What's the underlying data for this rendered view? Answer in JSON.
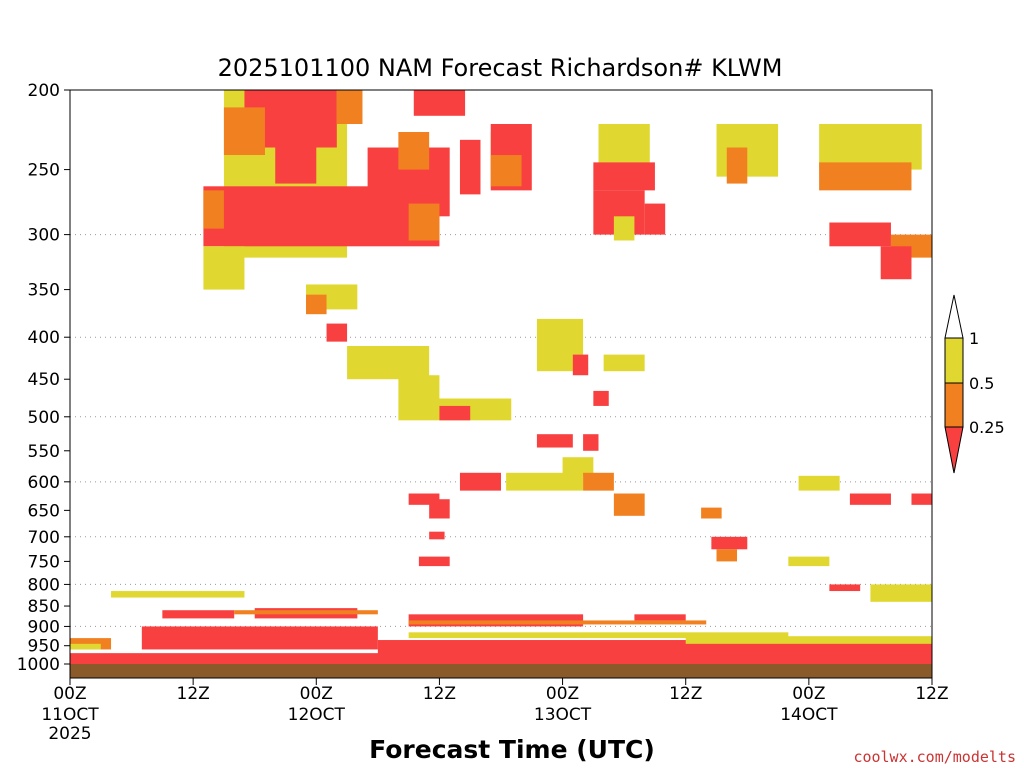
{
  "chart_data": {
    "type": "heatmap",
    "title": "2025101100 NAM Forecast Richardson# KLWM",
    "xlabel": "Forecast Time (UTC)",
    "ylabel": "",
    "y_axis_scale": "log-pressure (hPa), inverted",
    "ylim": [
      1000,
      200
    ],
    "xlim_hours": [
      0,
      84
    ],
    "grid": "dotted horizontal lines at 300, 400, 500, 600, 700, 800, 900 hPa",
    "y_ticks": [
      200,
      250,
      300,
      350,
      400,
      450,
      500,
      550,
      600,
      650,
      700,
      750,
      800,
      850,
      900,
      950,
      1000
    ],
    "y_tick_labels": [
      "200",
      "250",
      "300",
      "350",
      "400",
      "450",
      "500",
      "550",
      "600",
      "650",
      "700",
      "750",
      "800",
      "850",
      "900",
      "950",
      "1000"
    ],
    "x_ticks": [
      {
        "hour": 0,
        "label": "00Z",
        "day": "11OCT",
        "year": "2025"
      },
      {
        "hour": 12,
        "label": "12Z",
        "day": "",
        "year": ""
      },
      {
        "hour": 24,
        "label": "00Z",
        "day": "12OCT",
        "year": ""
      },
      {
        "hour": 36,
        "label": "12Z",
        "day": "",
        "year": ""
      },
      {
        "hour": 48,
        "label": "00Z",
        "day": "13OCT",
        "year": ""
      },
      {
        "hour": 60,
        "label": "12Z",
        "day": "",
        "year": ""
      },
      {
        "hour": 72,
        "label": "00Z",
        "day": "14OCT",
        "year": ""
      },
      {
        "hour": 84,
        "label": "12Z",
        "day": "",
        "year": ""
      }
    ],
    "colorbar": {
      "placement": "right",
      "levels": [
        {
          "label": "1",
          "value": 1
        },
        {
          "label": "0.5",
          "value": 0.5
        },
        {
          "label": "0.25",
          "value": 0.25
        }
      ],
      "bins": [
        {
          "range": [
            0.5,
            1
          ],
          "color": "#e0d830"
        },
        {
          "range": [
            0.25,
            0.5
          ],
          "color": "#f08020"
        },
        {
          "range": [
            0,
            0.25
          ],
          "color": "#f84040"
        }
      ],
      "extend_colors": {
        "above": "#ffffff",
        "below": "#f84040"
      }
    },
    "ground_color": "#8b5a2b",
    "regions": [
      {
        "category": "yellow",
        "x": [
          15,
          27
        ],
        "p": [
          200,
          320
        ]
      },
      {
        "category": "red",
        "x": [
          17,
          26
        ],
        "p": [
          200,
          235
        ]
      },
      {
        "category": "orange",
        "x": [
          15,
          19
        ],
        "p": [
          210,
          240
        ]
      },
      {
        "category": "red",
        "x": [
          13,
          36
        ],
        "p": [
          262,
          310
        ]
      },
      {
        "category": "red",
        "x": [
          20,
          24
        ],
        "p": [
          215,
          260
        ]
      },
      {
        "category": "orange",
        "x": [
          13,
          15
        ],
        "p": [
          265,
          295
        ]
      },
      {
        "category": "yellow",
        "x": [
          13,
          17
        ],
        "p": [
          310,
          350
        ]
      },
      {
        "category": "orange",
        "x": [
          26,
          28.5
        ],
        "p": [
          200,
          220
        ]
      },
      {
        "category": "red",
        "x": [
          29,
          37
        ],
        "p": [
          235,
          285
        ]
      },
      {
        "category": "orange",
        "x": [
          32,
          35
        ],
        "p": [
          225,
          250
        ]
      },
      {
        "category": "red",
        "x": [
          33.5,
          38.5
        ],
        "p": [
          200,
          215
        ]
      },
      {
        "category": "orange",
        "x": [
          33,
          36
        ],
        "p": [
          275,
          305
        ]
      },
      {
        "category": "red",
        "x": [
          38,
          40
        ],
        "p": [
          230,
          268
        ]
      },
      {
        "category": "yellow",
        "x": [
          41,
          44
        ],
        "p": [
          225,
          250
        ]
      },
      {
        "category": "red",
        "x": [
          41,
          45
        ],
        "p": [
          220,
          265
        ]
      },
      {
        "category": "orange",
        "x": [
          41,
          44
        ],
        "p": [
          240,
          262
        ]
      },
      {
        "category": "yellow",
        "x": [
          51.5,
          56.5
        ],
        "p": [
          220,
          250
        ]
      },
      {
        "category": "red",
        "x": [
          51,
          57
        ],
        "p": [
          245,
          265
        ]
      },
      {
        "category": "red",
        "x": [
          51,
          56
        ],
        "p": [
          265,
          300
        ]
      },
      {
        "category": "yellow",
        "x": [
          53,
          55
        ],
        "p": [
          285,
          305
        ]
      },
      {
        "category": "red",
        "x": [
          56,
          58
        ],
        "p": [
          275,
          300
        ]
      },
      {
        "category": "yellow",
        "x": [
          63,
          69
        ],
        "p": [
          220,
          255
        ]
      },
      {
        "category": "orange",
        "x": [
          64,
          66
        ],
        "p": [
          235,
          260
        ]
      },
      {
        "category": "yellow",
        "x": [
          73,
          83
        ],
        "p": [
          220,
          250
        ]
      },
      {
        "category": "orange",
        "x": [
          73,
          82
        ],
        "p": [
          245,
          265
        ]
      },
      {
        "category": "red",
        "x": [
          74,
          80
        ],
        "p": [
          290,
          310
        ]
      },
      {
        "category": "orange",
        "x": [
          80,
          84
        ],
        "p": [
          300,
          320
        ]
      },
      {
        "category": "red",
        "x": [
          79,
          82
        ],
        "p": [
          310,
          340
        ]
      },
      {
        "category": "yellow",
        "x": [
          23,
          28
        ],
        "p": [
          345,
          370
        ]
      },
      {
        "category": "orange",
        "x": [
          23,
          25
        ],
        "p": [
          355,
          375
        ]
      },
      {
        "category": "red",
        "x": [
          25,
          27
        ],
        "p": [
          385,
          405
        ]
      },
      {
        "category": "yellow",
        "x": [
          27,
          35
        ],
        "p": [
          410,
          450
        ]
      },
      {
        "category": "yellow",
        "x": [
          32,
          36
        ],
        "p": [
          445,
          475
        ]
      },
      {
        "category": "yellow",
        "x": [
          32,
          43
        ],
        "p": [
          475,
          505
        ]
      },
      {
        "category": "red",
        "x": [
          36,
          39
        ],
        "p": [
          485,
          505
        ]
      },
      {
        "category": "yellow",
        "x": [
          45.5,
          50
        ],
        "p": [
          380,
          440
        ]
      },
      {
        "category": "red",
        "x": [
          49,
          50.5
        ],
        "p": [
          420,
          445
        ]
      },
      {
        "category": "red",
        "x": [
          51,
          52.5
        ],
        "p": [
          465,
          485
        ]
      },
      {
        "category": "yellow",
        "x": [
          52,
          56
        ],
        "p": [
          420,
          440
        ]
      },
      {
        "category": "red",
        "x": [
          45.5,
          49
        ],
        "p": [
          525,
          545
        ]
      },
      {
        "category": "red",
        "x": [
          50,
          51.5
        ],
        "p": [
          525,
          550
        ]
      },
      {
        "category": "yellow",
        "x": [
          48,
          51
        ],
        "p": [
          560,
          590
        ]
      },
      {
        "category": "yellow",
        "x": [
          42.5,
          50
        ],
        "p": [
          585,
          615
        ]
      },
      {
        "category": "red",
        "x": [
          38,
          42
        ],
        "p": [
          585,
          615
        ]
      },
      {
        "category": "orange",
        "x": [
          50,
          53
        ],
        "p": [
          585,
          615
        ]
      },
      {
        "category": "red",
        "x": [
          35,
          37
        ],
        "p": [
          630,
          665
        ]
      },
      {
        "category": "red",
        "x": [
          33,
          36
        ],
        "p": [
          620,
          640
        ]
      },
      {
        "category": "orange",
        "x": [
          53,
          56
        ],
        "p": [
          620,
          660
        ]
      },
      {
        "category": "red",
        "x": [
          34,
          37
        ],
        "p": [
          740,
          760
        ]
      },
      {
        "category": "red",
        "x": [
          35,
          36.5
        ],
        "p": [
          690,
          705
        ]
      },
      {
        "category": "red",
        "x": [
          62.5,
          66
        ],
        "p": [
          700,
          725
        ]
      },
      {
        "category": "orange",
        "x": [
          63,
          65
        ],
        "p": [
          725,
          750
        ]
      },
      {
        "category": "orange",
        "x": [
          61.5,
          63.5
        ],
        "p": [
          645,
          665
        ]
      },
      {
        "category": "yellow",
        "x": [
          71,
          75
        ],
        "p": [
          590,
          615
        ]
      },
      {
        "category": "red",
        "x": [
          76,
          80
        ],
        "p": [
          620,
          640
        ]
      },
      {
        "category": "red",
        "x": [
          82,
          84
        ],
        "p": [
          620,
          640
        ]
      },
      {
        "category": "yellow",
        "x": [
          78,
          84
        ],
        "p": [
          800,
          840
        ]
      },
      {
        "category": "red",
        "x": [
          74,
          77
        ],
        "p": [
          800,
          815
        ]
      },
      {
        "category": "yellow",
        "x": [
          70,
          74
        ],
        "p": [
          740,
          760
        ]
      },
      {
        "category": "yellow",
        "x": [
          4,
          17
        ],
        "p": [
          815,
          830
        ]
      },
      {
        "category": "red",
        "x": [
          9,
          16
        ],
        "p": [
          860,
          880
        ]
      },
      {
        "category": "red",
        "x": [
          18,
          28
        ],
        "p": [
          855,
          880
        ]
      },
      {
        "category": "orange",
        "x": [
          16,
          30
        ],
        "p": [
          860,
          870
        ]
      },
      {
        "category": "red",
        "x": [
          7,
          30
        ],
        "p": [
          900,
          960
        ]
      },
      {
        "category": "red",
        "x": [
          33,
          50
        ],
        "p": [
          870,
          900
        ]
      },
      {
        "category": "orange",
        "x": [
          33,
          62
        ],
        "p": [
          885,
          895
        ]
      },
      {
        "category": "red",
        "x": [
          55,
          60
        ],
        "p": [
          870,
          885
        ]
      },
      {
        "category": "yellow",
        "x": [
          33,
          70
        ],
        "p": [
          915,
          930
        ]
      },
      {
        "category": "red",
        "x": [
          30,
          84
        ],
        "p": [
          935,
          975
        ]
      },
      {
        "category": "yellow",
        "x": [
          60,
          84
        ],
        "p": [
          925,
          945
        ]
      },
      {
        "category": "red",
        "x": [
          0,
          84
        ],
        "p": [
          970,
          1010
        ]
      },
      {
        "category": "orange",
        "x": [
          0,
          4
        ],
        "p": [
          930,
          960
        ]
      },
      {
        "category": "yellow",
        "x": [
          0,
          3
        ],
        "p": [
          945,
          960
        ]
      }
    ]
  },
  "credit": "coolwx.com/modelts"
}
